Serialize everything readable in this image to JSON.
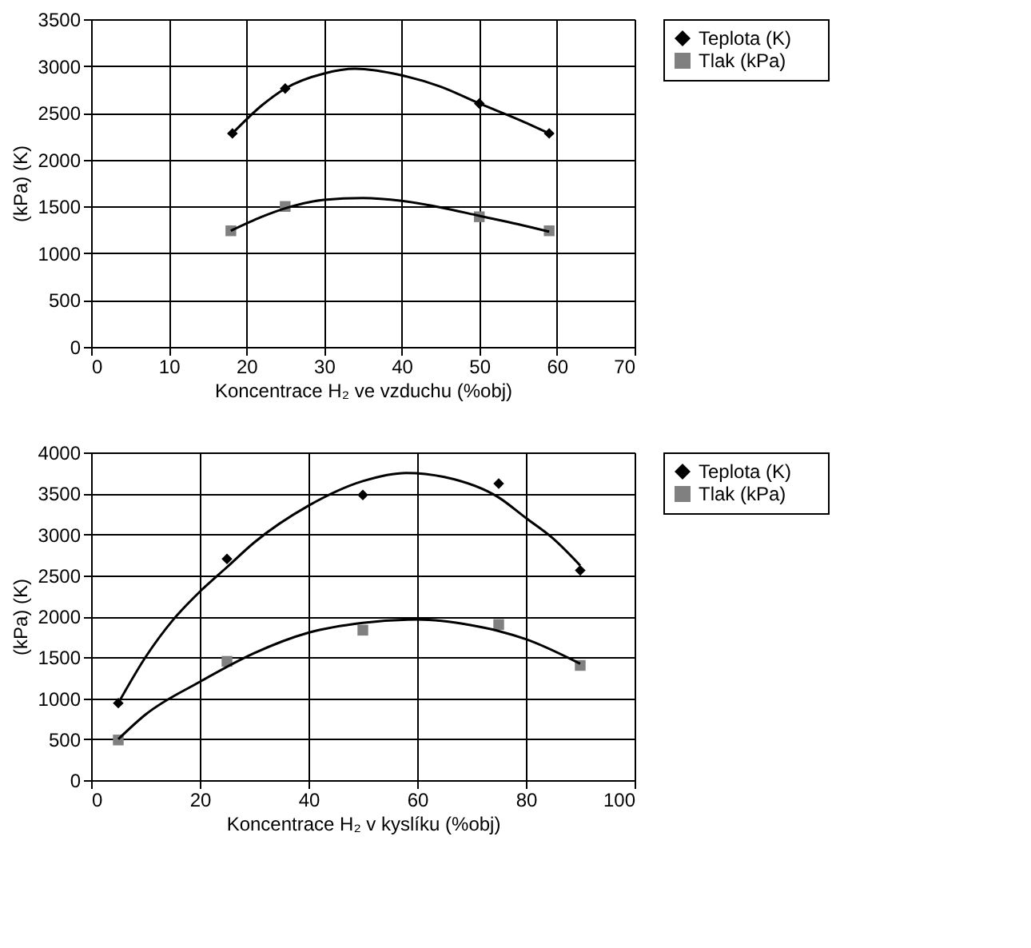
{
  "chart_data": [
    {
      "type": "scatter",
      "xlabel": "Koncentrace H₂ ve vzduchu (%obj)",
      "ylabel": "(kPa)          (K)",
      "xlim": [
        0,
        70
      ],
      "xticks": [
        0,
        10,
        20,
        30,
        40,
        50,
        60,
        70
      ],
      "ylim": [
        0,
        3500
      ],
      "yticks": [
        0,
        500,
        1000,
        1500,
        2000,
        2500,
        3000,
        3500
      ],
      "grid": true,
      "legend": "right",
      "series": [
        {
          "name": "Teplota      (K)",
          "marker": "diamond",
          "color": "#000000",
          "x": [
            18.2,
            25,
            50,
            59
          ],
          "values": [
            2280,
            2760,
            2600,
            2280
          ]
        },
        {
          "name": "Tlak      (kPa)",
          "marker": "square",
          "color": "#808080",
          "x": [
            18,
            25,
            50,
            59
          ],
          "values": [
            1240,
            1500,
            1390,
            1240
          ]
        },
        {
          "type": "line",
          "color": "#000000",
          "x": [
            18.2,
            22,
            25,
            30,
            34,
            40,
            45,
            50,
            55,
            59
          ],
          "values": [
            2280,
            2580,
            2760,
            2920,
            2970,
            2900,
            2780,
            2600,
            2430,
            2280
          ]
        },
        {
          "type": "line",
          "color": "#000000",
          "x": [
            18,
            22,
            25,
            30,
            35,
            40,
            45,
            50,
            55,
            59
          ],
          "values": [
            1240,
            1390,
            1480,
            1570,
            1590,
            1560,
            1490,
            1400,
            1310,
            1230
          ]
        }
      ]
    },
    {
      "type": "scatter",
      "xlabel": "Koncentrace H₂ v kyslíku (%obj)",
      "ylabel": "(kPa)          (K)",
      "xlim": [
        0,
        100
      ],
      "xticks": [
        0,
        20,
        40,
        60,
        80,
        100
      ],
      "ylim": [
        0,
        4000
      ],
      "yticks": [
        0,
        500,
        1000,
        1500,
        2000,
        2500,
        3000,
        3500,
        4000
      ],
      "grid": true,
      "legend": "right",
      "series": [
        {
          "name": "Teplota      (K)",
          "marker": "diamond",
          "color": "#000000",
          "x": [
            5,
            25,
            50,
            75,
            90
          ],
          "values": [
            940,
            2700,
            3480,
            3620,
            2560
          ]
        },
        {
          "name": "Tlak      (kPa)",
          "marker": "square",
          "color": "#808080",
          "x": [
            5,
            25,
            50,
            75,
            90
          ],
          "values": [
            490,
            1450,
            1830,
            1900,
            1400
          ]
        },
        {
          "type": "line",
          "color": "#000000",
          "x": [
            5,
            10,
            15,
            20,
            25,
            30,
            40,
            50,
            58,
            65,
            75,
            80,
            85,
            90
          ],
          "values": [
            940,
            1500,
            1950,
            2300,
            2600,
            2900,
            3350,
            3650,
            3750,
            3700,
            3450,
            3200,
            2950,
            2620
          ]
        },
        {
          "type": "line",
          "color": "#000000",
          "x": [
            5,
            10,
            20,
            30,
            40,
            50,
            60,
            70,
            75,
            80,
            90
          ],
          "values": [
            500,
            800,
            1200,
            1550,
            1800,
            1920,
            1960,
            1890,
            1820,
            1720,
            1420
          ]
        }
      ]
    }
  ]
}
